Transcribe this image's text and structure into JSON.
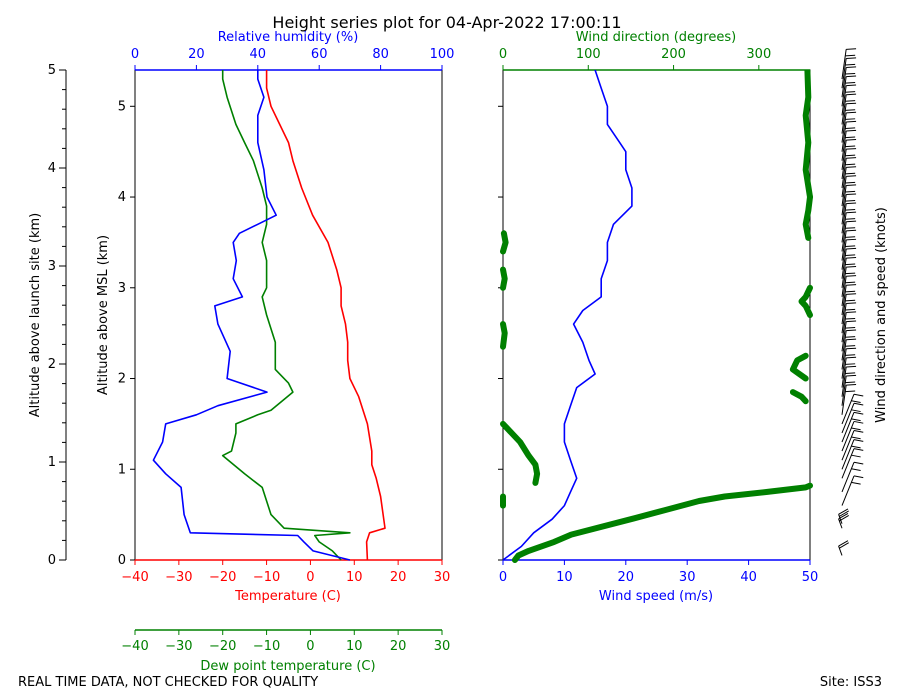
{
  "title": "Height series plot for 04-Apr-2022 17:00:11",
  "footer": {
    "left": "REAL TIME DATA, NOT CHECKED FOR QUALITY",
    "right": "Site: ISS3"
  },
  "colors": {
    "temperature": "#ff0000",
    "dewpoint": "#008000",
    "humidity": "#0000ff",
    "wind_speed": "#0000ff",
    "wind_direction": "#008000",
    "barbs": "#000000"
  },
  "chart_data": [
    {
      "id": "thermo",
      "type": "line",
      "ylabel_left": "Altitude above launch site (km)",
      "ylabel_inner": "Altitude above MSL (km)",
      "y_msl_ylim": [
        0,
        5.4
      ],
      "y_msl_ticks": [
        0,
        1,
        2,
        3,
        4,
        5
      ],
      "y_agl_ylim": [
        0,
        5
      ],
      "y_agl_ticks": [
        0,
        1,
        2,
        3,
        4,
        5
      ],
      "axes": {
        "temperature": {
          "label": "Temperature (C)",
          "lim": [
            -40,
            30
          ],
          "ticks": [
            -40,
            -30,
            -20,
            -10,
            0,
            10,
            20,
            30
          ]
        },
        "dewpoint": {
          "label": "Dew point temperature (C)",
          "lim": [
            -40,
            30
          ],
          "ticks": [
            -40,
            -30,
            -20,
            -10,
            0,
            10,
            20,
            30
          ]
        },
        "humidity": {
          "label": "Relative humidity (%)",
          "lim": [
            0,
            100
          ],
          "ticks": [
            0,
            20,
            40,
            60,
            80,
            100
          ]
        }
      },
      "series": [
        {
          "name": "Temperature",
          "axis": "temperature",
          "points": [
            [
              13,
              0.0
            ],
            [
              12.8,
              0.2
            ],
            [
              13.5,
              0.3
            ],
            [
              17,
              0.35
            ],
            [
              16,
              0.7
            ],
            [
              15,
              0.9
            ],
            [
              14,
              1.05
            ],
            [
              14,
              1.2
            ],
            [
              13,
              1.5
            ],
            [
              11,
              1.8
            ],
            [
              9,
              2.0
            ],
            [
              8.5,
              2.2
            ],
            [
              8.5,
              2.4
            ],
            [
              8,
              2.6
            ],
            [
              7,
              2.8
            ],
            [
              7,
              3.0
            ],
            [
              6,
              3.2
            ],
            [
              4,
              3.5
            ],
            [
              0.5,
              3.8
            ],
            [
              -2,
              4.1
            ],
            [
              -4,
              4.4
            ],
            [
              -5,
              4.6
            ],
            [
              -7,
              4.8
            ],
            [
              -9,
              5.0
            ],
            [
              -10,
              5.2
            ],
            [
              -10,
              5.4
            ]
          ]
        },
        {
          "name": "Dew point",
          "axis": "dewpoint",
          "points": [
            [
              7,
              0.0
            ],
            [
              5,
              0.1
            ],
            [
              2,
              0.2
            ],
            [
              1,
              0.27
            ],
            [
              9,
              0.3
            ],
            [
              -6,
              0.35
            ],
            [
              -9,
              0.5
            ],
            [
              -11,
              0.8
            ],
            [
              -15,
              0.95
            ],
            [
              -20,
              1.15
            ],
            [
              -18,
              1.2
            ],
            [
              -17,
              1.4
            ],
            [
              -17,
              1.5
            ],
            [
              -12,
              1.6
            ],
            [
              -9,
              1.65
            ],
            [
              -4,
              1.85
            ],
            [
              -5,
              1.95
            ],
            [
              -8,
              2.1
            ],
            [
              -8,
              2.4
            ],
            [
              -10,
              2.7
            ],
            [
              -11,
              2.9
            ],
            [
              -10,
              3.0
            ],
            [
              -10,
              3.3
            ],
            [
              -11,
              3.5
            ],
            [
              -10,
              3.7
            ],
            [
              -10,
              3.9
            ],
            [
              -11,
              4.1
            ],
            [
              -13,
              4.4
            ],
            [
              -15,
              4.6
            ],
            [
              -17,
              4.8
            ],
            [
              -19,
              5.1
            ],
            [
              -20,
              5.3
            ],
            [
              -20,
              5.4
            ]
          ]
        },
        {
          "name": "Relative humidity",
          "axis": "humidity",
          "points": [
            [
              70,
              0.0
            ],
            [
              58,
              0.1
            ],
            [
              55,
              0.2
            ],
            [
              53,
              0.27
            ],
            [
              18,
              0.3
            ],
            [
              16,
              0.5
            ],
            [
              15,
              0.8
            ],
            [
              10,
              0.95
            ],
            [
              6,
              1.1
            ],
            [
              9,
              1.3
            ],
            [
              10,
              1.5
            ],
            [
              20,
              1.6
            ],
            [
              27,
              1.7
            ],
            [
              43,
              1.85
            ],
            [
              30,
              2.0
            ],
            [
              31,
              2.3
            ],
            [
              27,
              2.6
            ],
            [
              26,
              2.8
            ],
            [
              35,
              2.9
            ],
            [
              32,
              3.1
            ],
            [
              33,
              3.3
            ],
            [
              32,
              3.5
            ],
            [
              34,
              3.6
            ],
            [
              40,
              3.7
            ],
            [
              46,
              3.8
            ],
            [
              43,
              4.0
            ],
            [
              42,
              4.3
            ],
            [
              40,
              4.6
            ],
            [
              40,
              4.9
            ],
            [
              42,
              5.1
            ],
            [
              40,
              5.3
            ],
            [
              40,
              5.4
            ]
          ]
        }
      ]
    },
    {
      "id": "wind",
      "type": "line",
      "axes": {
        "wind_speed": {
          "label": "Wind speed (m/s)",
          "lim": [
            0,
            50
          ],
          "ticks": [
            0,
            10,
            20,
            30,
            40,
            50
          ]
        },
        "wind_direction": {
          "label": "Wind direction (degrees)",
          "lim": [
            0,
            360
          ],
          "ticks": [
            0,
            100,
            200,
            300
          ]
        }
      },
      "series": [
        {
          "name": "Wind speed",
          "axis": "wind_speed",
          "points": [
            [
              0,
              0.0
            ],
            [
              3,
              0.15
            ],
            [
              5,
              0.3
            ],
            [
              8,
              0.45
            ],
            [
              10,
              0.6
            ],
            [
              11,
              0.75
            ],
            [
              12,
              0.9
            ],
            [
              11,
              1.1
            ],
            [
              10,
              1.3
            ],
            [
              10,
              1.5
            ],
            [
              11,
              1.7
            ],
            [
              12,
              1.9
            ],
            [
              15,
              2.05
            ],
            [
              14,
              2.2
            ],
            [
              13,
              2.4
            ],
            [
              11.5,
              2.6
            ],
            [
              13,
              2.75
            ],
            [
              16,
              2.9
            ],
            [
              16,
              3.1
            ],
            [
              17,
              3.3
            ],
            [
              17,
              3.5
            ],
            [
              18,
              3.7
            ],
            [
              21,
              3.9
            ],
            [
              21,
              4.1
            ],
            [
              20,
              4.3
            ],
            [
              20,
              4.5
            ],
            [
              19,
              4.6
            ],
            [
              17,
              4.8
            ],
            [
              17,
              5.0
            ],
            [
              16,
              5.2
            ],
            [
              15,
              5.4
            ]
          ]
        },
        {
          "name": "Wind direction",
          "axis": "wind_direction",
          "points": [
            [
              14,
              0.0
            ],
            [
              18,
              0.05
            ],
            [
              30,
              0.1
            ],
            [
              60,
              0.2
            ],
            [
              80,
              0.28
            ],
            [
              150,
              0.45
            ],
            [
              190,
              0.55
            ],
            [
              230,
              0.65
            ],
            [
              260,
              0.7
            ],
            [
              310,
              0.75
            ],
            [
              355,
              0.8
            ],
            [
              360,
              0.82
            ]
          ],
          "segments": [
            [
              [
                0,
                0.6
              ],
              [
                0,
                0.65
              ],
              [
                0,
                0.7
              ]
            ],
            [
              [
                0,
                1.5
              ],
              [
                5,
                1.45
              ],
              [
                20,
                1.3
              ],
              [
                30,
                1.15
              ],
              [
                38,
                1.05
              ],
              [
                40,
                0.95
              ],
              [
                38,
                0.85
              ]
            ],
            [
              [
                340,
                1.85
              ],
              [
                350,
                1.8
              ],
              [
                355,
                1.75
              ]
            ],
            [
              [
                355,
                2.0
              ],
              [
                340,
                2.1
              ],
              [
                345,
                2.2
              ],
              [
                355,
                2.25
              ]
            ],
            [
              [
                0,
                2.35
              ],
              [
                2,
                2.5
              ],
              [
                0,
                2.6
              ]
            ],
            [
              [
                360,
                2.7
              ],
              [
                355,
                2.8
              ],
              [
                350,
                2.85
              ],
              [
                355,
                2.9
              ],
              [
                360,
                3.0
              ]
            ],
            [
              [
                0,
                3.0
              ],
              [
                2,
                3.1
              ],
              [
                0,
                3.2
              ]
            ],
            [
              [
                0,
                3.4
              ],
              [
                3,
                3.5
              ],
              [
                1,
                3.6
              ]
            ],
            [
              [
                358,
                3.55
              ],
              [
                355,
                3.7
              ],
              [
                358,
                3.85
              ],
              [
                360,
                4.0
              ]
            ],
            [
              [
                360,
                4.0
              ],
              [
                355,
                4.3
              ],
              [
                358,
                4.6
              ],
              [
                355,
                4.9
              ],
              [
                358,
                5.1
              ],
              [
                357,
                5.4
              ]
            ]
          ]
        }
      ]
    },
    {
      "id": "barbs",
      "type": "barbs",
      "ylabel": "Wind direction and speed (knots)",
      "levels": [
        0.05,
        0.35,
        0.4,
        0.6,
        0.75,
        0.9,
        1.0,
        1.1,
        1.2,
        1.3,
        1.4,
        1.5,
        1.6,
        1.7,
        1.8,
        1.9,
        2.0,
        2.1,
        2.2,
        2.3,
        2.4,
        2.5,
        2.6,
        2.7,
        2.8,
        2.9,
        3.0,
        3.1,
        3.2,
        3.3,
        3.4,
        3.5,
        3.6,
        3.7,
        3.8,
        3.9,
        4.0,
        4.1,
        4.2,
        4.3,
        4.4,
        4.5,
        4.6,
        4.7,
        4.8,
        4.9,
        5.0,
        5.1,
        5.2,
        5.3
      ]
    }
  ]
}
